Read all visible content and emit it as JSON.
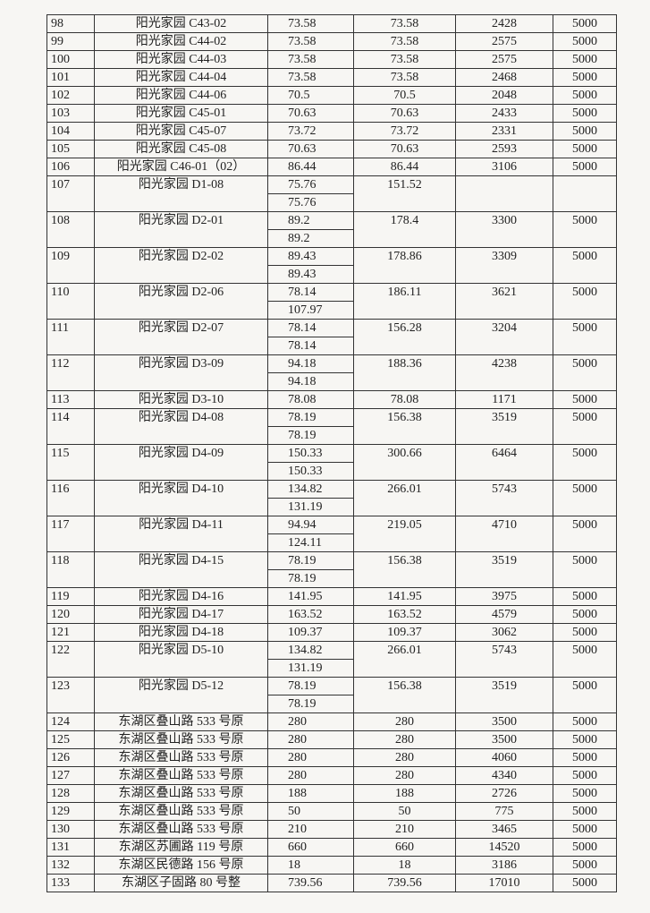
{
  "table": {
    "rows": [
      [
        "98",
        "阳光家园 C43-02",
        [
          "73.58"
        ],
        "73.58",
        "2428",
        "5000"
      ],
      [
        "99",
        "阳光家园 C44-02",
        [
          "73.58"
        ],
        "73.58",
        "2575",
        "5000"
      ],
      [
        "100",
        "阳光家园 C44-03",
        [
          "73.58"
        ],
        "73.58",
        "2575",
        "5000"
      ],
      [
        "101",
        "阳光家园 C44-04",
        [
          "73.58"
        ],
        "73.58",
        "2468",
        "5000"
      ],
      [
        "102",
        "阳光家园 C44-06",
        [
          "70.5"
        ],
        "70.5",
        "2048",
        "5000"
      ],
      [
        "103",
        "阳光家园 C45-01",
        [
          "70.63"
        ],
        "70.63",
        "2433",
        "5000"
      ],
      [
        "104",
        "阳光家园 C45-07",
        [
          "73.72"
        ],
        "73.72",
        "2331",
        "5000"
      ],
      [
        "105",
        "阳光家园 C45-08",
        [
          "70.63"
        ],
        "70.63",
        "2593",
        "5000"
      ],
      [
        "106",
        "阳光家园 C46-01（02）",
        [
          "86.44"
        ],
        "86.44",
        "3106",
        "5000"
      ],
      [
        "107",
        "阳光家园 D1-08",
        [
          "75.76",
          "75.76"
        ],
        "151.52",
        null,
        null
      ],
      [
        "108",
        "阳光家园 D2-01",
        [
          "89.2",
          "89.2"
        ],
        "178.4",
        "3300",
        "5000"
      ],
      [
        "109",
        "阳光家园 D2-02",
        [
          "89.43",
          "89.43"
        ],
        "178.86",
        "3309",
        "5000"
      ],
      [
        "110",
        "阳光家园 D2-06",
        [
          "78.14",
          "107.97"
        ],
        "186.11",
        "3621",
        "5000"
      ],
      [
        "111",
        "阳光家园 D2-07",
        [
          "78.14",
          "78.14"
        ],
        "156.28",
        "3204",
        "5000"
      ],
      [
        "112",
        "阳光家园 D3-09",
        [
          "94.18",
          "94.18"
        ],
        "188.36",
        "4238",
        "5000"
      ],
      [
        "113",
        "阳光家园 D3-10",
        [
          "78.08"
        ],
        "78.08",
        "1171",
        "5000"
      ],
      [
        "114",
        "阳光家园 D4-08",
        [
          "78.19",
          "78.19"
        ],
        "156.38",
        "3519",
        "5000"
      ],
      [
        "115",
        "阳光家园 D4-09",
        [
          "150.33",
          "150.33"
        ],
        "300.66",
        "6464",
        "5000"
      ],
      [
        "116",
        "阳光家园 D4-10",
        [
          "134.82",
          "131.19"
        ],
        "266.01",
        "5743",
        "5000"
      ],
      [
        "117",
        "阳光家园 D4-11",
        [
          "94.94",
          "124.11"
        ],
        "219.05",
        "4710",
        "5000"
      ],
      [
        "118",
        "阳光家园 D4-15",
        [
          "78.19",
          "78.19"
        ],
        "156.38",
        "3519",
        "5000"
      ],
      [
        "119",
        "阳光家园 D4-16",
        [
          "141.95"
        ],
        "141.95",
        "3975",
        "5000"
      ],
      [
        "120",
        "阳光家园 D4-17",
        [
          "163.52"
        ],
        "163.52",
        "4579",
        "5000"
      ],
      [
        "121",
        "阳光家园 D4-18",
        [
          "109.37"
        ],
        "109.37",
        "3062",
        "5000"
      ],
      [
        "122",
        "阳光家园 D5-10",
        [
          "134.82",
          "131.19"
        ],
        "266.01",
        "5743",
        "5000"
      ],
      [
        "123",
        "阳光家园 D5-12",
        [
          "78.19",
          "78.19"
        ],
        "156.38",
        "3519",
        "5000"
      ],
      [
        "124",
        "东湖区叠山路 533 号原",
        [
          "280"
        ],
        "280",
        "3500",
        "5000"
      ],
      [
        "125",
        "东湖区叠山路 533 号原",
        [
          "280"
        ],
        "280",
        "3500",
        "5000"
      ],
      [
        "126",
        "东湖区叠山路 533 号原",
        [
          "280"
        ],
        "280",
        "4060",
        "5000"
      ],
      [
        "127",
        "东湖区叠山路 533 号原",
        [
          "280"
        ],
        "280",
        "4340",
        "5000"
      ],
      [
        "128",
        "东湖区叠山路 533 号原",
        [
          "188"
        ],
        "188",
        "2726",
        "5000"
      ],
      [
        "129",
        "东湖区叠山路 533 号原",
        [
          "50"
        ],
        "50",
        "775",
        "5000"
      ],
      [
        "130",
        "东湖区叠山路 533 号原",
        [
          "210"
        ],
        "210",
        "3465",
        "5000"
      ],
      [
        "131",
        "东湖区苏圃路 119 号原",
        [
          "660"
        ],
        "660",
        "14520",
        "5000"
      ],
      [
        "132",
        "东湖区民德路 156 号原",
        [
          "18"
        ],
        "18",
        "3186",
        "5000"
      ],
      [
        "133",
        "东湖区子固路 80 号整",
        [
          "739.56"
        ],
        "739.56",
        "17010",
        "5000"
      ]
    ]
  }
}
